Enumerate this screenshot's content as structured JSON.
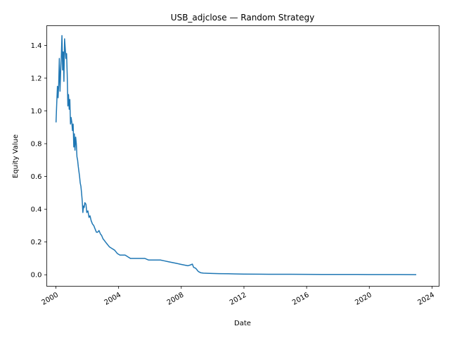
{
  "chart_data": {
    "type": "line",
    "title": "USB_adjclose — Random Strategy",
    "xlabel": "Date",
    "ylabel": "Equity Value",
    "xlim": [
      "1999-06-01",
      "2024-06-15"
    ],
    "ylim": [
      -0.07,
      1.52
    ],
    "x_ticks": [
      "2000",
      "2004",
      "2008",
      "2012",
      "2016",
      "2020",
      "2024"
    ],
    "y_ticks": [
      "0.0",
      "0.2",
      "0.4",
      "0.6",
      "0.8",
      "1.0",
      "1.2",
      "1.4"
    ],
    "grid": false,
    "series": [
      {
        "color": "#1f77b4",
        "x": [
          "2000-01-03",
          "2000-01-20",
          "2000-02-05",
          "2000-02-20",
          "2000-03-05",
          "2000-03-20",
          "2000-04-05",
          "2000-04-20",
          "2000-05-05",
          "2000-05-20",
          "2000-06-05",
          "2000-06-20",
          "2000-07-05",
          "2000-07-20",
          "2000-08-05",
          "2000-08-20",
          "2000-09-05",
          "2000-09-20",
          "2000-10-05",
          "2000-10-20",
          "2000-11-05",
          "2000-11-20",
          "2000-12-05",
          "2000-12-20",
          "2001-01-05",
          "2001-01-20",
          "2001-02-05",
          "2001-02-20",
          "2001-03-05",
          "2001-03-20",
          "2001-04-05",
          "2001-04-20",
          "2001-05-05",
          "2001-05-20",
          "2001-06-05",
          "2001-06-20",
          "2001-07-05",
          "2001-07-20",
          "2001-08-05",
          "2001-08-20",
          "2001-09-05",
          "2001-09-20",
          "2001-10-05",
          "2001-10-20",
          "2001-11-05",
          "2001-12-01",
          "2001-12-20",
          "2002-01-15",
          "2002-02-10",
          "2002-03-05",
          "2002-04-01",
          "2002-05-01",
          "2002-06-01",
          "2002-07-01",
          "2002-08-01",
          "2002-09-01",
          "2002-10-01",
          "2002-11-01",
          "2002-12-01",
          "2003-01-01",
          "2003-02-01",
          "2003-03-01",
          "2003-04-01",
          "2003-05-01",
          "2003-06-01",
          "2003-08-01",
          "2003-10-01",
          "2003-12-01",
          "2004-02-01",
          "2004-04-01",
          "2004-06-01",
          "2004-08-01",
          "2004-10-01",
          "2004-12-01",
          "2005-03-01",
          "2005-06-01",
          "2005-09-01",
          "2005-12-01",
          "2006-03-01",
          "2006-06-01",
          "2006-09-01",
          "2006-12-01",
          "2007-03-01",
          "2007-06-01",
          "2007-09-01",
          "2007-12-01",
          "2008-03-01",
          "2008-06-01",
          "2008-08-01",
          "2008-09-15",
          "2008-10-15",
          "2008-12-01",
          "2009-02-01",
          "2009-04-01",
          "2009-06-01",
          "2009-09-01",
          "2010-01-01",
          "2010-06-01",
          "2011-01-01",
          "2011-06-01",
          "2012-01-01",
          "2013-01-01",
          "2014-01-01",
          "2015-01-01",
          "2016-01-01",
          "2017-01-01",
          "2018-01-01",
          "2019-01-01",
          "2020-01-01",
          "2021-01-01",
          "2022-01-01",
          "2022-12-30"
        ],
        "y": [
          0.93,
          1.05,
          1.15,
          1.08,
          1.16,
          1.32,
          1.12,
          1.24,
          1.33,
          1.46,
          1.25,
          1.36,
          1.18,
          1.44,
          1.38,
          1.32,
          1.35,
          1.22,
          1.03,
          1.1,
          1.01,
          1.07,
          0.92,
          0.96,
          0.93,
          0.88,
          0.92,
          0.78,
          0.86,
          0.76,
          0.84,
          0.8,
          0.72,
          0.7,
          0.66,
          0.63,
          0.6,
          0.56,
          0.54,
          0.5,
          0.45,
          0.38,
          0.42,
          0.41,
          0.44,
          0.43,
          0.38,
          0.39,
          0.35,
          0.36,
          0.33,
          0.31,
          0.3,
          0.28,
          0.26,
          0.26,
          0.27,
          0.25,
          0.24,
          0.22,
          0.21,
          0.2,
          0.19,
          0.18,
          0.17,
          0.16,
          0.15,
          0.13,
          0.12,
          0.12,
          0.12,
          0.11,
          0.1,
          0.1,
          0.1,
          0.1,
          0.1,
          0.09,
          0.09,
          0.09,
          0.09,
          0.085,
          0.08,
          0.075,
          0.07,
          0.065,
          0.06,
          0.055,
          0.06,
          0.065,
          0.045,
          0.04,
          0.02,
          0.012,
          0.01,
          0.009,
          0.008,
          0.007,
          0.006,
          0.005,
          0.004,
          0.0035,
          0.003,
          0.0028,
          0.0025,
          0.0022,
          0.002,
          0.0018,
          0.0016,
          0.0014,
          0.0012,
          0.001
        ]
      }
    ]
  }
}
